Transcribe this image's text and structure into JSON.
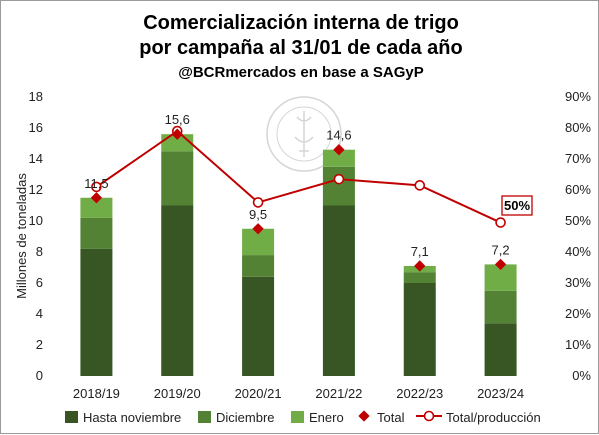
{
  "chart_data": {
    "type": "bar",
    "title": "Comercialización interna de trigo",
    "title_line2": "por campaña al 31/01 de cada año",
    "subtitle": "@BCRmercados en base a SAGyP",
    "ylabel": "Millones de toneladas",
    "ylim": [
      0,
      18
    ],
    "y_ticks": [
      "0",
      "2",
      "4",
      "6",
      "8",
      "10",
      "12",
      "14",
      "16",
      "18"
    ],
    "y2lim": [
      0,
      0.9
    ],
    "y2_ticks": [
      "0%",
      "10%",
      "20%",
      "30%",
      "40%",
      "50%",
      "60%",
      "70%",
      "80%",
      "90%"
    ],
    "categories": [
      "2018/19",
      "2019/20",
      "2020/21",
      "2021/22",
      "2022/23",
      "2023/24"
    ],
    "stacked": true,
    "series": [
      {
        "name": "Hasta noviembre",
        "color": "#375623",
        "values": [
          8.2,
          11.0,
          6.4,
          11.0,
          6.0,
          3.4
        ]
      },
      {
        "name": "Diciembre",
        "color": "#548235",
        "values": [
          2.0,
          3.5,
          1.4,
          2.5,
          0.7,
          2.1
        ]
      },
      {
        "name": "Enero",
        "color": "#70ad47",
        "values": [
          1.3,
          1.1,
          1.7,
          1.1,
          0.4,
          1.7
        ]
      }
    ],
    "total": {
      "name": "Total",
      "color": "#c00000",
      "values": [
        11.5,
        15.6,
        9.5,
        14.6,
        7.1,
        7.2
      ],
      "labels": [
        "11,5",
        "15,6",
        "9,5",
        "14,6",
        "7,1",
        "7,2"
      ]
    },
    "ratio": {
      "name": "Total/producción",
      "color": "#c00000",
      "axis": "right",
      "values": [
        0.61,
        0.79,
        0.56,
        0.635,
        0.615,
        0.495
      ]
    },
    "callout": "50%",
    "watermark_text": "BOLSA DE COMERCIO DE ROSARIO",
    "legend_position": "bottom",
    "grid": false
  }
}
